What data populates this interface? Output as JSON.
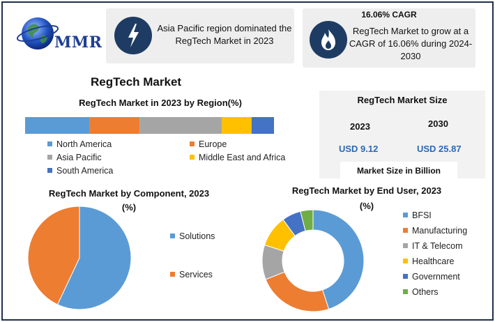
{
  "brand": {
    "logo_text": "MMR"
  },
  "highlight_cards": [
    {
      "icon": "lightning-bolt-icon",
      "text": "Asia Pacific region dominated the RegTech Market in 2023"
    },
    {
      "icon": "flame-icon",
      "title": "16.06% CAGR",
      "text": "RegTech Market to grow at a CAGR of 16.06% during 2024-2030"
    }
  ],
  "main_title": "RegTech Market",
  "market_size": {
    "title": "RegTech Market Size",
    "years": [
      {
        "year": "2023",
        "value": "USD 9.12"
      },
      {
        "year": "2030",
        "value": "USD 25.87"
      }
    ],
    "unit_label": "Market Size in Billion"
  },
  "colors": {
    "north_america": "#5b9bd5",
    "europe": "#ed7d31",
    "asia_pacific": "#a5a5a5",
    "mea": "#ffc000",
    "south_america": "#4472c4",
    "others": "#70ad47",
    "icon_bg": "#1e3c63",
    "value_text": "#2a69b5"
  },
  "chart_data": [
    {
      "type": "bar",
      "orientation": "horizontal-stacked",
      "title": "RegTech Market in 2023 by Region(%)",
      "categories": [
        "2023"
      ],
      "series": [
        {
          "name": "North America",
          "values": [
            26
          ],
          "color": "#5b9bd5"
        },
        {
          "name": "Europe",
          "values": [
            20
          ],
          "color": "#ed7d31"
        },
        {
          "name": "Asia Pacific",
          "values": [
            33
          ],
          "color": "#a5a5a5"
        },
        {
          "name": "Middle East and Africa",
          "values": [
            12
          ],
          "color": "#ffc000"
        },
        {
          "name": "South America",
          "values": [
            9
          ],
          "color": "#4472c4"
        }
      ],
      "legend_position": "bottom"
    },
    {
      "type": "pie",
      "title": "RegTech Market by Component, 2023",
      "subtitle": "(%)",
      "slices": [
        {
          "name": "Solutions",
          "value": 57,
          "color": "#5b9bd5"
        },
        {
          "name": "Services",
          "value": 43,
          "color": "#ed7d31"
        }
      ],
      "legend_position": "right"
    },
    {
      "type": "pie",
      "variant": "donut",
      "title": "RegTech Market by End User, 2023",
      "subtitle": "(%)",
      "slices": [
        {
          "name": "BFSI",
          "value": 45,
          "color": "#5b9bd5"
        },
        {
          "name": "Manufacturing",
          "value": 24,
          "color": "#ed7d31"
        },
        {
          "name": "IT & Telecom",
          "value": 11,
          "color": "#a5a5a5"
        },
        {
          "name": "Healthcare",
          "value": 10,
          "color": "#ffc000"
        },
        {
          "name": "Government",
          "value": 6,
          "color": "#4472c4"
        },
        {
          "name": "Others",
          "value": 4,
          "color": "#70ad47"
        }
      ],
      "legend_position": "right"
    }
  ]
}
